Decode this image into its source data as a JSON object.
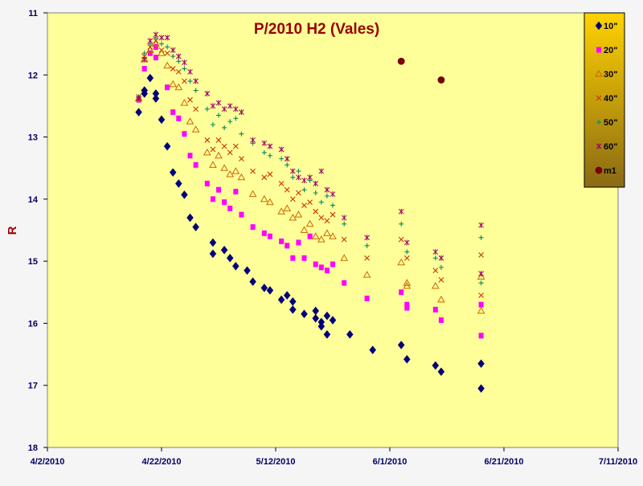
{
  "chart_data": {
    "type": "scatter",
    "title": "P/2010 H2 (Vales)",
    "ylabel": "R",
    "xlabel": "",
    "x_is_date": true,
    "xlim": [
      "2010-04-02",
      "2010-07-11"
    ],
    "ylim": [
      11,
      18
    ],
    "y_inverted": true,
    "x_ticks": [
      "4/2/2010",
      "4/22/2010",
      "5/12/2010",
      "6/1/2010",
      "6/21/2010",
      "7/11/2010"
    ],
    "y_ticks": [
      "11",
      "12",
      "13",
      "14",
      "15",
      "16",
      "17",
      "18"
    ],
    "grid": false,
    "legend_position": "top-right",
    "colors": {
      "plot_area": "#ffff99",
      "outer_background": "#f5f5f5",
      "axis_label_text": "#000066",
      "title_text": "#990000",
      "ylabel_text": "#990000"
    },
    "series": [
      {
        "name": "10\"",
        "color": "#00007a",
        "marker": "diamond",
        "points": [
          [
            "2010-04-18",
            12.6
          ],
          [
            "2010-04-19",
            12.3
          ],
          [
            "2010-04-19",
            12.25
          ],
          [
            "2010-04-20",
            12.05
          ],
          [
            "2010-04-21",
            12.3
          ],
          [
            "2010-04-21",
            12.38
          ],
          [
            "2010-04-22",
            12.72
          ],
          [
            "2010-04-23",
            13.15
          ],
          [
            "2010-04-24",
            13.57
          ],
          [
            "2010-04-25",
            13.75
          ],
          [
            "2010-04-26",
            13.93
          ],
          [
            "2010-04-27",
            14.3
          ],
          [
            "2010-04-28",
            14.45
          ],
          [
            "2010-05-01",
            14.7
          ],
          [
            "2010-05-01",
            14.88
          ],
          [
            "2010-05-03",
            14.82
          ],
          [
            "2010-05-04",
            14.95
          ],
          [
            "2010-05-05",
            15.08
          ],
          [
            "2010-05-07",
            15.15
          ],
          [
            "2010-05-08",
            15.33
          ],
          [
            "2010-05-10",
            15.43
          ],
          [
            "2010-05-11",
            15.47
          ],
          [
            "2010-05-13",
            15.62
          ],
          [
            "2010-05-14",
            15.55
          ],
          [
            "2010-05-15",
            15.65
          ],
          [
            "2010-05-15",
            15.78
          ],
          [
            "2010-05-17",
            15.85
          ],
          [
            "2010-05-19",
            15.8
          ],
          [
            "2010-05-19",
            15.92
          ],
          [
            "2010-05-20",
            15.98
          ],
          [
            "2010-05-20",
            16.05
          ],
          [
            "2010-05-21",
            15.88
          ],
          [
            "2010-05-21",
            16.18
          ],
          [
            "2010-05-22",
            15.95
          ],
          [
            "2010-05-25",
            16.18
          ],
          [
            "2010-05-29",
            16.43
          ],
          [
            "2010-06-03",
            16.35
          ],
          [
            "2010-06-04",
            16.58
          ],
          [
            "2010-06-09",
            16.68
          ],
          [
            "2010-06-10",
            16.78
          ],
          [
            "2010-06-17",
            16.65
          ],
          [
            "2010-06-17",
            17.05
          ]
        ]
      },
      {
        "name": "20\"",
        "color": "#ff00ff",
        "marker": "square",
        "points": [
          [
            "2010-04-18",
            12.4
          ],
          [
            "2010-04-19",
            11.9
          ],
          [
            "2010-04-20",
            11.65
          ],
          [
            "2010-04-21",
            11.55
          ],
          [
            "2010-04-21",
            11.72
          ],
          [
            "2010-04-23",
            12.2
          ],
          [
            "2010-04-24",
            12.6
          ],
          [
            "2010-04-25",
            12.7
          ],
          [
            "2010-04-26",
            12.95
          ],
          [
            "2010-04-27",
            13.3
          ],
          [
            "2010-04-28",
            13.45
          ],
          [
            "2010-04-30",
            13.75
          ],
          [
            "2010-05-01",
            14.0
          ],
          [
            "2010-05-02",
            13.85
          ],
          [
            "2010-05-03",
            14.05
          ],
          [
            "2010-05-04",
            14.15
          ],
          [
            "2010-05-05",
            13.88
          ],
          [
            "2010-05-06",
            14.25
          ],
          [
            "2010-05-08",
            14.45
          ],
          [
            "2010-05-10",
            14.55
          ],
          [
            "2010-05-11",
            14.6
          ],
          [
            "2010-05-13",
            14.68
          ],
          [
            "2010-05-14",
            14.75
          ],
          [
            "2010-05-15",
            14.95
          ],
          [
            "2010-05-16",
            14.7
          ],
          [
            "2010-05-17",
            14.95
          ],
          [
            "2010-05-18",
            14.6
          ],
          [
            "2010-05-19",
            15.05
          ],
          [
            "2010-05-20",
            15.1
          ],
          [
            "2010-05-21",
            15.15
          ],
          [
            "2010-05-22",
            15.05
          ],
          [
            "2010-05-24",
            15.35
          ],
          [
            "2010-05-28",
            15.6
          ],
          [
            "2010-06-03",
            15.5
          ],
          [
            "2010-06-04",
            15.7
          ],
          [
            "2010-06-04",
            15.75
          ],
          [
            "2010-06-09",
            15.78
          ],
          [
            "2010-06-10",
            15.95
          ],
          [
            "2010-06-17",
            15.7
          ],
          [
            "2010-06-17",
            16.2
          ]
        ]
      },
      {
        "name": "30\"",
        "color": "#cc6600",
        "marker": "triangle",
        "points": [
          [
            "2010-04-18",
            12.38
          ],
          [
            "2010-04-19",
            11.75
          ],
          [
            "2010-04-20",
            11.6
          ],
          [
            "2010-04-21",
            11.5
          ],
          [
            "2010-04-22",
            11.65
          ],
          [
            "2010-04-23",
            11.85
          ],
          [
            "2010-04-24",
            12.15
          ],
          [
            "2010-04-25",
            12.2
          ],
          [
            "2010-04-26",
            12.45
          ],
          [
            "2010-04-27",
            12.75
          ],
          [
            "2010-04-28",
            12.88
          ],
          [
            "2010-04-30",
            13.25
          ],
          [
            "2010-05-01",
            13.45
          ],
          [
            "2010-05-02",
            13.3
          ],
          [
            "2010-05-03",
            13.5
          ],
          [
            "2010-05-04",
            13.6
          ],
          [
            "2010-05-05",
            13.55
          ],
          [
            "2010-05-06",
            13.65
          ],
          [
            "2010-05-08",
            13.92
          ],
          [
            "2010-05-10",
            14.0
          ],
          [
            "2010-05-11",
            14.05
          ],
          [
            "2010-05-13",
            14.2
          ],
          [
            "2010-05-14",
            14.15
          ],
          [
            "2010-05-15",
            14.3
          ],
          [
            "2010-05-16",
            14.25
          ],
          [
            "2010-05-17",
            14.5
          ],
          [
            "2010-05-18",
            14.4
          ],
          [
            "2010-05-19",
            14.6
          ],
          [
            "2010-05-20",
            14.65
          ],
          [
            "2010-05-21",
            14.55
          ],
          [
            "2010-05-22",
            14.6
          ],
          [
            "2010-05-24",
            14.95
          ],
          [
            "2010-05-28",
            15.22
          ],
          [
            "2010-06-03",
            15.02
          ],
          [
            "2010-06-04",
            15.35
          ],
          [
            "2010-06-04",
            15.4
          ],
          [
            "2010-06-09",
            15.4
          ],
          [
            "2010-06-10",
            15.62
          ],
          [
            "2010-06-17",
            15.25
          ],
          [
            "2010-06-17",
            15.8
          ]
        ]
      },
      {
        "name": "40\"",
        "color": "#cc3300",
        "marker": "x",
        "points": [
          [
            "2010-04-18",
            12.35
          ],
          [
            "2010-04-19",
            11.7
          ],
          [
            "2010-04-20",
            11.55
          ],
          [
            "2010-04-21",
            11.45
          ],
          [
            "2010-04-22",
            11.6
          ],
          [
            "2010-04-23",
            11.65
          ],
          [
            "2010-04-24",
            11.9
          ],
          [
            "2010-04-25",
            11.95
          ],
          [
            "2010-04-26",
            12.1
          ],
          [
            "2010-04-27",
            12.4
          ],
          [
            "2010-04-28",
            12.55
          ],
          [
            "2010-04-30",
            13.05
          ],
          [
            "2010-05-01",
            13.2
          ],
          [
            "2010-05-02",
            13.05
          ],
          [
            "2010-05-03",
            13.15
          ],
          [
            "2010-05-04",
            13.25
          ],
          [
            "2010-05-05",
            13.15
          ],
          [
            "2010-05-06",
            13.35
          ],
          [
            "2010-05-08",
            13.55
          ],
          [
            "2010-05-10",
            13.65
          ],
          [
            "2010-05-11",
            13.6
          ],
          [
            "2010-05-13",
            13.75
          ],
          [
            "2010-05-14",
            13.85
          ],
          [
            "2010-05-15",
            14.0
          ],
          [
            "2010-05-16",
            13.9
          ],
          [
            "2010-05-17",
            14.1
          ],
          [
            "2010-05-18",
            14.05
          ],
          [
            "2010-05-19",
            14.2
          ],
          [
            "2010-05-20",
            14.3
          ],
          [
            "2010-05-21",
            14.35
          ],
          [
            "2010-05-22",
            14.25
          ],
          [
            "2010-05-24",
            14.65
          ],
          [
            "2010-05-28",
            14.95
          ],
          [
            "2010-06-03",
            14.65
          ],
          [
            "2010-06-04",
            14.95
          ],
          [
            "2010-06-09",
            15.15
          ],
          [
            "2010-06-10",
            15.3
          ],
          [
            "2010-06-17",
            14.9
          ],
          [
            "2010-06-17",
            15.55
          ]
        ]
      },
      {
        "name": "50\"",
        "color": "#008866",
        "marker": "plus",
        "points": [
          [
            "2010-04-18",
            12.35
          ],
          [
            "2010-04-19",
            11.65
          ],
          [
            "2010-04-20",
            11.5
          ],
          [
            "2010-04-21",
            11.4
          ],
          [
            "2010-04-22",
            11.5
          ],
          [
            "2010-04-23",
            11.55
          ],
          [
            "2010-04-24",
            11.7
          ],
          [
            "2010-04-25",
            11.78
          ],
          [
            "2010-04-26",
            11.9
          ],
          [
            "2010-04-27",
            12.1
          ],
          [
            "2010-04-28",
            12.25
          ],
          [
            "2010-04-30",
            12.55
          ],
          [
            "2010-05-01",
            12.8
          ],
          [
            "2010-05-02",
            12.65
          ],
          [
            "2010-05-03",
            12.85
          ],
          [
            "2010-05-04",
            12.75
          ],
          [
            "2010-05-05",
            12.7
          ],
          [
            "2010-05-06",
            12.95
          ],
          [
            "2010-05-08",
            13.1
          ],
          [
            "2010-05-10",
            13.25
          ],
          [
            "2010-05-11",
            13.3
          ],
          [
            "2010-05-13",
            13.35
          ],
          [
            "2010-05-14",
            13.45
          ],
          [
            "2010-05-15",
            13.65
          ],
          [
            "2010-05-16",
            13.55
          ],
          [
            "2010-05-17",
            13.85
          ],
          [
            "2010-05-18",
            13.7
          ],
          [
            "2010-05-19",
            13.9
          ],
          [
            "2010-05-20",
            14.05
          ],
          [
            "2010-05-21",
            13.95
          ],
          [
            "2010-05-22",
            14.1
          ],
          [
            "2010-05-24",
            14.4
          ],
          [
            "2010-05-28",
            14.75
          ],
          [
            "2010-06-03",
            14.4
          ],
          [
            "2010-06-04",
            14.85
          ],
          [
            "2010-06-09",
            14.95
          ],
          [
            "2010-06-10",
            15.1
          ],
          [
            "2010-06-17",
            14.62
          ],
          [
            "2010-06-17",
            15.35
          ]
        ]
      },
      {
        "name": "60\"",
        "color": "#990066",
        "marker": "star",
        "points": [
          [
            "2010-04-18",
            12.38
          ],
          [
            "2010-04-19",
            11.75
          ],
          [
            "2010-04-20",
            11.45
          ],
          [
            "2010-04-21",
            11.35
          ],
          [
            "2010-04-22",
            11.4
          ],
          [
            "2010-04-23",
            11.4
          ],
          [
            "2010-04-24",
            11.6
          ],
          [
            "2010-04-25",
            11.7
          ],
          [
            "2010-04-26",
            11.8
          ],
          [
            "2010-04-27",
            11.95
          ],
          [
            "2010-04-28",
            12.1
          ],
          [
            "2010-04-30",
            12.3
          ],
          [
            "2010-05-01",
            12.5
          ],
          [
            "2010-05-02",
            12.45
          ],
          [
            "2010-05-03",
            12.55
          ],
          [
            "2010-05-04",
            12.5
          ],
          [
            "2010-05-05",
            12.55
          ],
          [
            "2010-05-06",
            12.6
          ],
          [
            "2010-05-08",
            13.05
          ],
          [
            "2010-05-10",
            13.1
          ],
          [
            "2010-05-11",
            13.15
          ],
          [
            "2010-05-13",
            13.2
          ],
          [
            "2010-05-14",
            13.35
          ],
          [
            "2010-05-15",
            13.55
          ],
          [
            "2010-05-16",
            13.65
          ],
          [
            "2010-05-17",
            13.7
          ],
          [
            "2010-05-18",
            13.65
          ],
          [
            "2010-05-19",
            13.75
          ],
          [
            "2010-05-20",
            13.55
          ],
          [
            "2010-05-21",
            13.85
          ],
          [
            "2010-05-22",
            13.92
          ],
          [
            "2010-05-24",
            14.3
          ],
          [
            "2010-05-28",
            14.62
          ],
          [
            "2010-06-03",
            14.2
          ],
          [
            "2010-06-04",
            14.7
          ],
          [
            "2010-06-09",
            14.85
          ],
          [
            "2010-06-10",
            14.95
          ],
          [
            "2010-06-17",
            14.42
          ],
          [
            "2010-06-17",
            15.2
          ]
        ]
      },
      {
        "name": "m1",
        "color": "#800000",
        "marker": "circle",
        "points": [
          [
            "2010-06-03",
            11.78
          ],
          [
            "2010-06-10",
            12.08
          ]
        ]
      }
    ]
  }
}
